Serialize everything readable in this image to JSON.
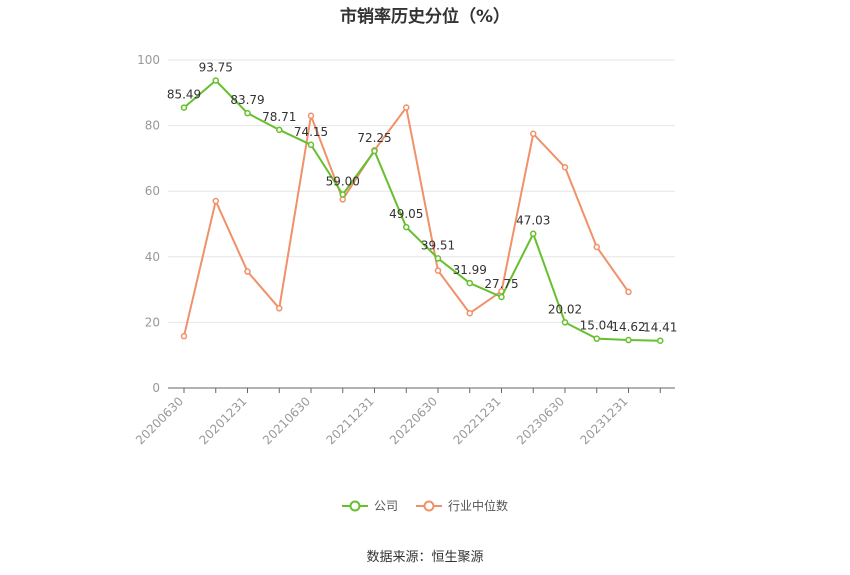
{
  "chart_data": {
    "type": "line",
    "title": "市销率历史分位（%）",
    "xlabel": "",
    "ylabel": "",
    "ylim": [
      0,
      100
    ],
    "yticks": [
      0,
      20,
      40,
      60,
      80,
      100
    ],
    "tick_labels": [
      "20200630",
      "20201231",
      "20210630",
      "20211231",
      "20220630",
      "20221231",
      "20230630",
      "20231231"
    ],
    "grid": true,
    "legend_position": "bottom",
    "series": [
      {
        "name": "公司",
        "color": "#66c02e",
        "values": [
          85.49,
          93.75,
          83.79,
          78.71,
          74.15,
          59.0,
          72.25,
          49.05,
          39.51,
          31.99,
          27.75,
          47.03,
          20.02,
          15.04,
          14.62,
          14.41
        ],
        "labels": [
          "85.49",
          "93.75",
          "83.79",
          "78.71",
          "74.15",
          "59.00",
          "72.25",
          "49.05",
          "39.51",
          "31.99",
          "27.75",
          "47.03",
          "20.02",
          "15.04",
          "14.62",
          "14.41"
        ]
      },
      {
        "name": "行业中位数",
        "color": "#f0916a",
        "values": [
          15.8,
          57.0,
          35.5,
          24.3,
          83.0,
          57.5,
          72.5,
          85.5,
          35.8,
          22.8,
          29.5,
          77.5,
          67.3,
          43.0,
          29.3
        ]
      }
    ]
  },
  "source_text": "数据来源：恒生聚源"
}
